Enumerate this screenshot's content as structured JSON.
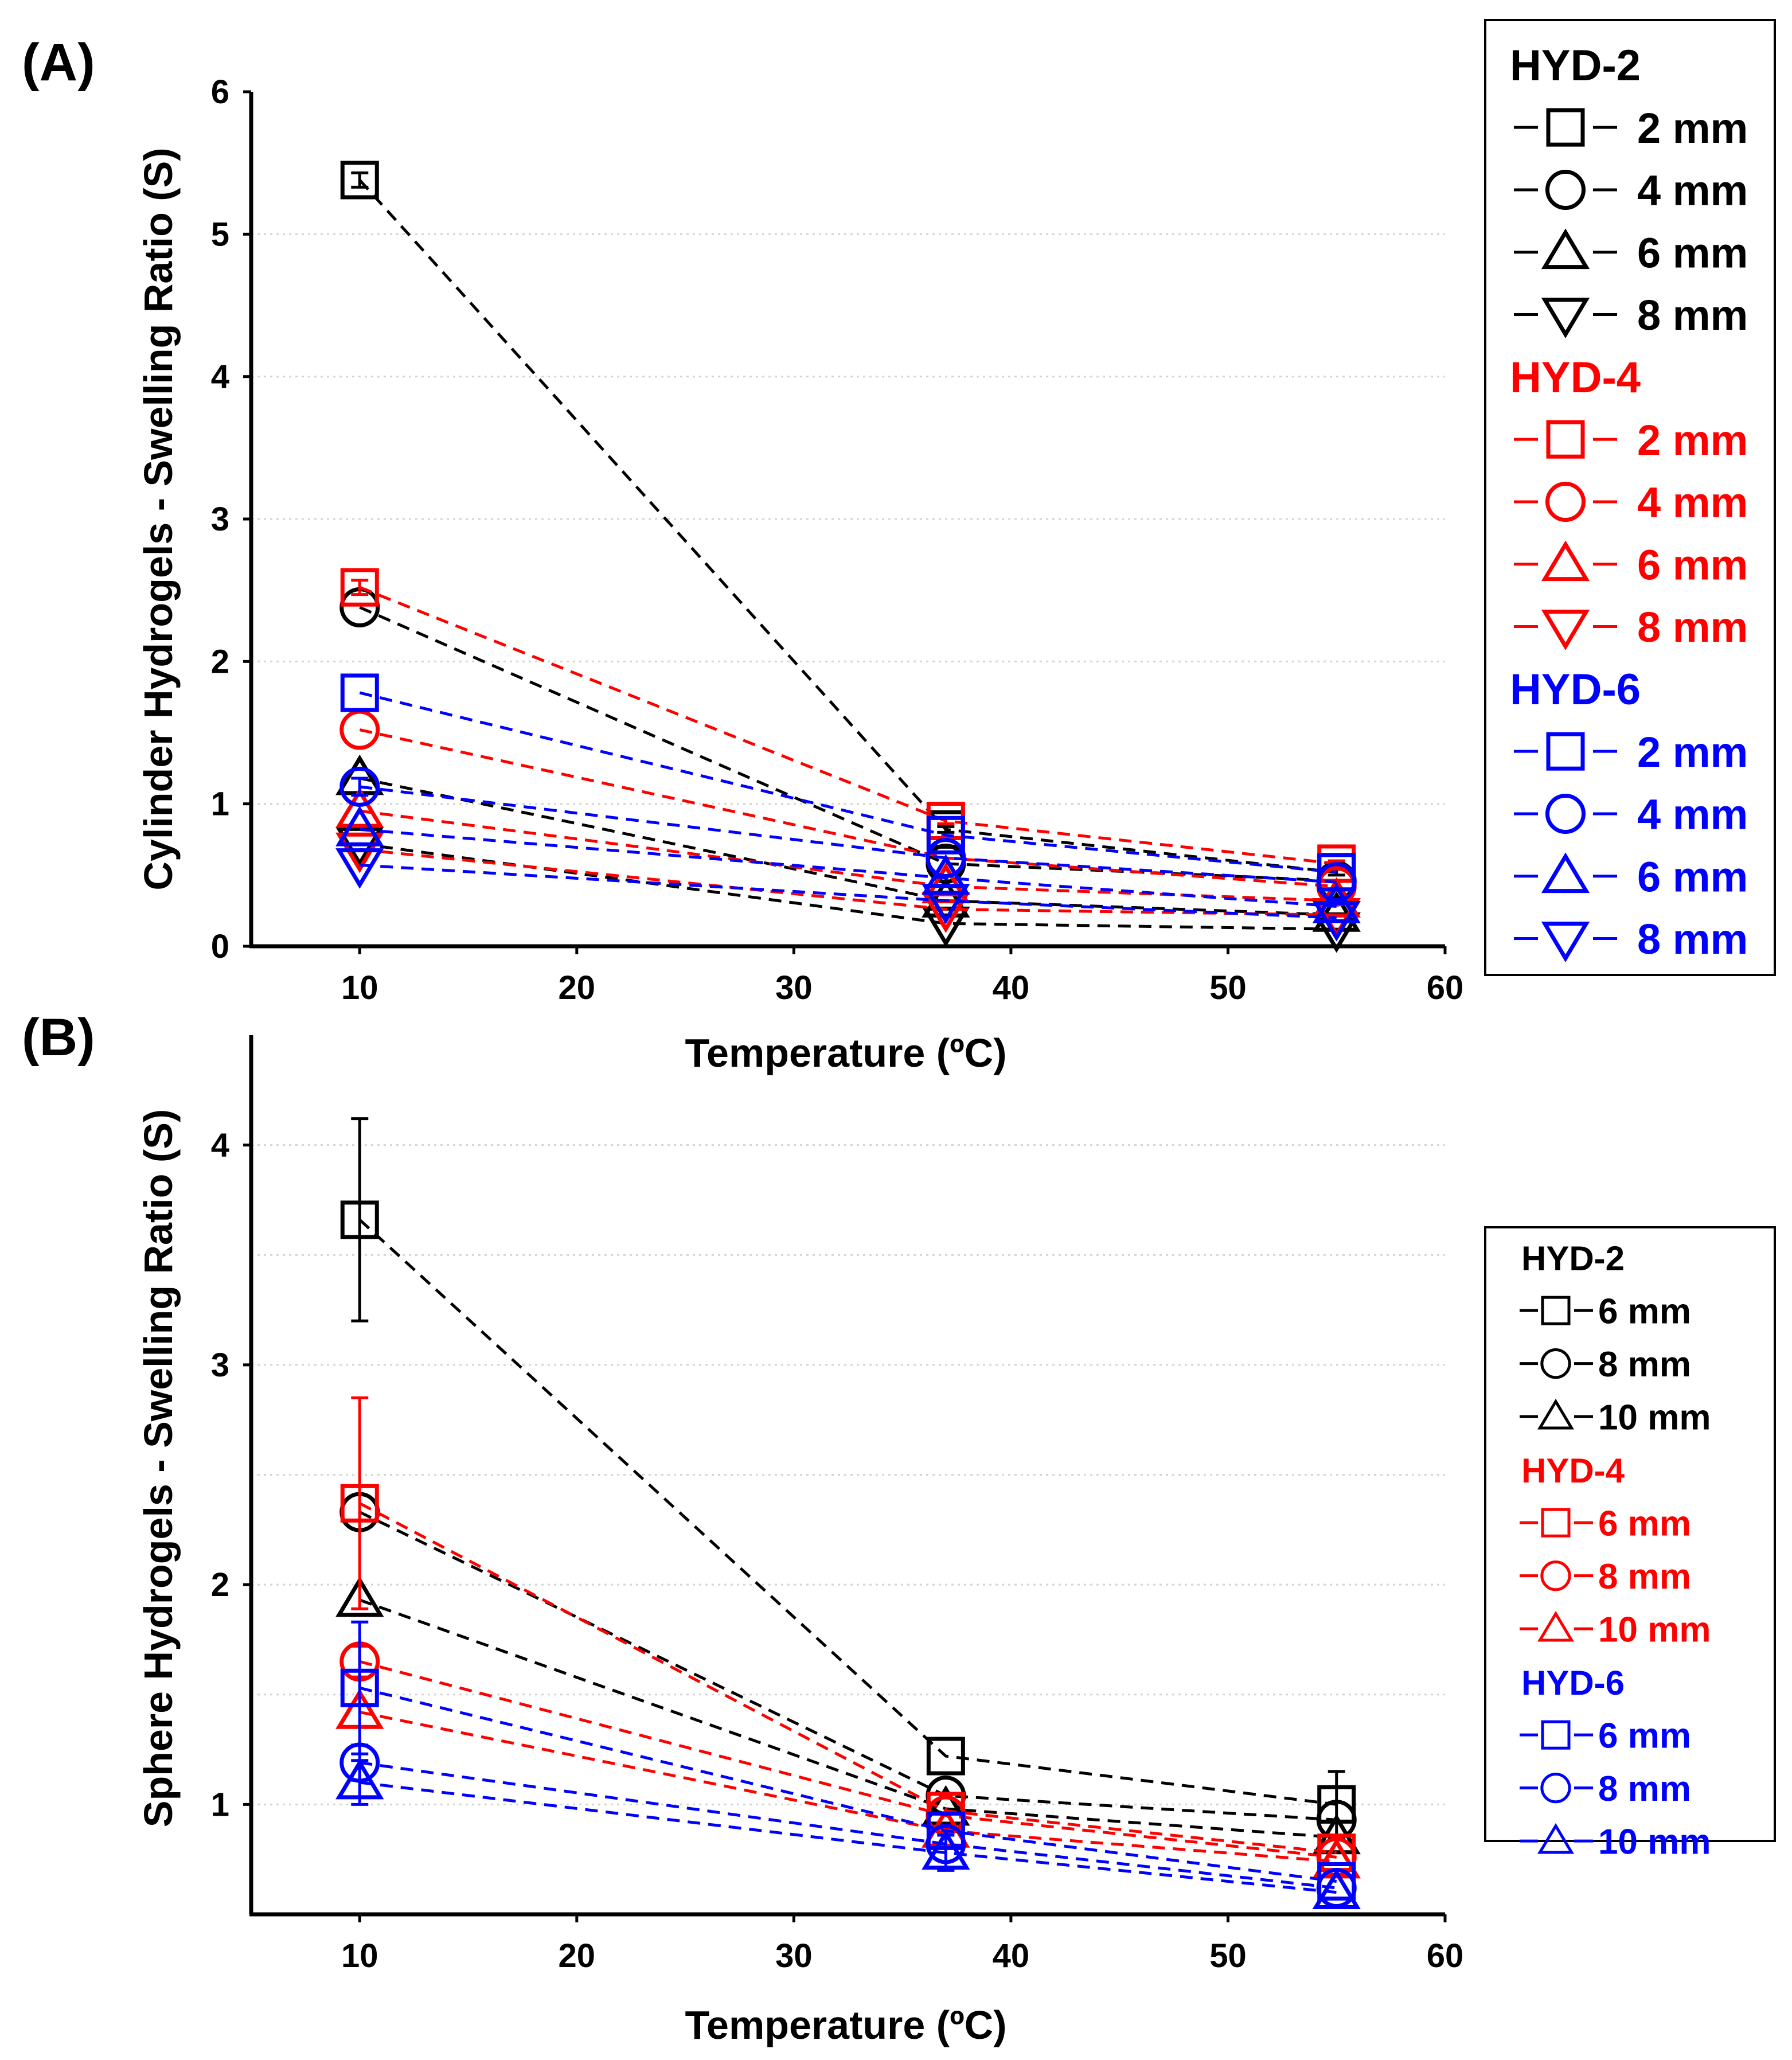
{
  "panels": [
    {
      "label": "(A)"
    },
    {
      "label": "(B)"
    }
  ],
  "colors": {
    "HYD-2": "#000000",
    "HYD-4": "#ff0000",
    "HYD-6": "#0000ff"
  },
  "chart_data": [
    {
      "type": "line",
      "panel": "(A)",
      "title": "",
      "xlabel": "Temperature (ºC)",
      "ylabel": "Cylinder Hydrogels - Swelling Ratio (S)",
      "xlim": [
        5,
        60
      ],
      "ylim": [
        0,
        6
      ],
      "xticks": [
        "10",
        "20",
        "30",
        "40",
        "50",
        "60"
      ],
      "yticks": [
        "0",
        "1",
        "2",
        "3",
        "4",
        "5",
        "6"
      ],
      "x": [
        10,
        37,
        55
      ],
      "legend_groups": [
        {
          "title": "HYD-2",
          "color": "#000000",
          "entries": [
            "2 mm",
            "4 mm",
            "6 mm",
            "8 mm"
          ]
        },
        {
          "title": "HYD-4",
          "color": "#ff0000",
          "entries": [
            "2 mm",
            "4 mm",
            "6 mm",
            "8 mm"
          ]
        },
        {
          "title": "HYD-6",
          "color": "#0000ff",
          "entries": [
            "2 mm",
            "4 mm",
            "6 mm",
            "8 mm"
          ]
        }
      ],
      "series": [
        {
          "name": "HYD-2 2 mm",
          "group": "HYD-2",
          "marker": "square",
          "values": [
            5.38,
            0.82,
            0.52
          ],
          "errors": [
            0.05,
            0.02,
            0.02
          ]
        },
        {
          "name": "HYD-2 4 mm",
          "group": "HYD-2",
          "marker": "circle",
          "values": [
            2.38,
            0.58,
            0.46
          ],
          "errors": [
            0,
            0,
            0
          ]
        },
        {
          "name": "HYD-2 6 mm",
          "group": "HYD-2",
          "marker": "triangle-up",
          "values": [
            1.18,
            0.32,
            0.22
          ],
          "errors": [
            0,
            0,
            0
          ]
        },
        {
          "name": "HYD-2 8 mm",
          "group": "HYD-2",
          "marker": "triangle-down",
          "values": [
            0.72,
            0.16,
            0.12
          ],
          "errors": [
            0,
            0,
            0
          ]
        },
        {
          "name": "HYD-4 2 mm",
          "group": "HYD-4",
          "marker": "square",
          "values": [
            2.52,
            0.88,
            0.58
          ],
          "errors": [
            0.05,
            0.02,
            0.02
          ]
        },
        {
          "name": "HYD-4 4 mm",
          "group": "HYD-4",
          "marker": "circle",
          "values": [
            1.52,
            0.62,
            0.42
          ],
          "errors": [
            0,
            0,
            0
          ]
        },
        {
          "name": "HYD-4 6 mm",
          "group": "HYD-4",
          "marker": "triangle-up",
          "values": [
            0.95,
            0.42,
            0.32
          ],
          "errors": [
            0,
            0,
            0
          ]
        },
        {
          "name": "HYD-4 8 mm",
          "group": "HYD-4",
          "marker": "triangle-down",
          "values": [
            0.68,
            0.26,
            0.22
          ],
          "errors": [
            0,
            0,
            0
          ]
        },
        {
          "name": "HYD-6 2 mm",
          "group": "HYD-6",
          "marker": "square",
          "values": [
            1.78,
            0.78,
            0.52
          ],
          "errors": [
            0,
            0,
            0
          ]
        },
        {
          "name": "HYD-6 4 mm",
          "group": "HYD-6",
          "marker": "circle",
          "values": [
            1.12,
            0.62,
            0.45
          ],
          "errors": [
            0.06,
            0,
            0
          ]
        },
        {
          "name": "HYD-6 6 mm",
          "group": "HYD-6",
          "marker": "triangle-up",
          "values": [
            0.82,
            0.48,
            0.28
          ],
          "errors": [
            0,
            0,
            0
          ]
        },
        {
          "name": "HYD-6 8 mm",
          "group": "HYD-6",
          "marker": "triangle-down",
          "values": [
            0.57,
            0.32,
            0.2
          ],
          "errors": [
            0,
            0,
            0
          ]
        }
      ]
    },
    {
      "type": "line",
      "panel": "(B)",
      "title": "",
      "xlabel": "Temperature (ºC)",
      "ylabel": "Sphere Hydrogels - Swelling Ratio (S)",
      "xlim": [
        5,
        60
      ],
      "ylim": [
        0.5,
        4.5
      ],
      "xticks": [
        "10",
        "20",
        "30",
        "40",
        "50",
        "60"
      ],
      "yticks": [
        "1",
        "2",
        "3",
        "4"
      ],
      "x": [
        10,
        37,
        55
      ],
      "legend_groups": [
        {
          "title": "HYD-2",
          "color": "#000000",
          "entries": [
            "6 mm",
            "8 mm",
            "10 mm"
          ]
        },
        {
          "title": "HYD-4",
          "color": "#ff0000",
          "entries": [
            "6 mm",
            "8 mm",
            "10 mm"
          ]
        },
        {
          "title": "HYD-6",
          "color": "#0000ff",
          "entries": [
            "6 mm",
            "8 mm",
            "10 mm"
          ]
        }
      ],
      "series": [
        {
          "name": "HYD-2 6 mm",
          "group": "HYD-2",
          "marker": "square",
          "values": [
            3.66,
            1.22,
            1.0
          ],
          "errors": [
            0.46,
            0,
            0.15
          ]
        },
        {
          "name": "HYD-2 8 mm",
          "group": "HYD-2",
          "marker": "circle",
          "values": [
            2.33,
            1.04,
            0.93
          ],
          "errors": [
            0,
            0,
            0
          ]
        },
        {
          "name": "HYD-2 10 mm",
          "group": "HYD-2",
          "marker": "triangle-up",
          "values": [
            1.93,
            0.98,
            0.85
          ],
          "errors": [
            0,
            0,
            0
          ]
        },
        {
          "name": "HYD-4 6 mm",
          "group": "HYD-4",
          "marker": "square",
          "values": [
            2.37,
            0.97,
            0.78
          ],
          "errors": [
            0.48,
            0,
            0
          ]
        },
        {
          "name": "HYD-4 8 mm",
          "group": "HYD-4",
          "marker": "circle",
          "values": [
            1.65,
            0.95,
            0.76
          ],
          "errors": [
            0.07,
            0,
            0
          ]
        },
        {
          "name": "HYD-4 10 mm",
          "group": "HYD-4",
          "marker": "triangle-up",
          "values": [
            1.42,
            0.88,
            0.74
          ],
          "errors": [
            0,
            0,
            0
          ]
        },
        {
          "name": "HYD-6 6 mm",
          "group": "HYD-6",
          "marker": "square",
          "values": [
            1.53,
            0.88,
            0.65
          ],
          "errors": [
            0.3,
            0,
            0
          ]
        },
        {
          "name": "HYD-6 8 mm",
          "group": "HYD-6",
          "marker": "circle",
          "values": [
            1.19,
            0.82,
            0.62
          ],
          "errors": [
            0.08,
            0,
            0
          ]
        },
        {
          "name": "HYD-6 10 mm",
          "group": "HYD-6",
          "marker": "triangle-up",
          "values": [
            1.1,
            0.78,
            0.6
          ],
          "errors": [
            0.1,
            0.08,
            0
          ]
        }
      ]
    }
  ]
}
